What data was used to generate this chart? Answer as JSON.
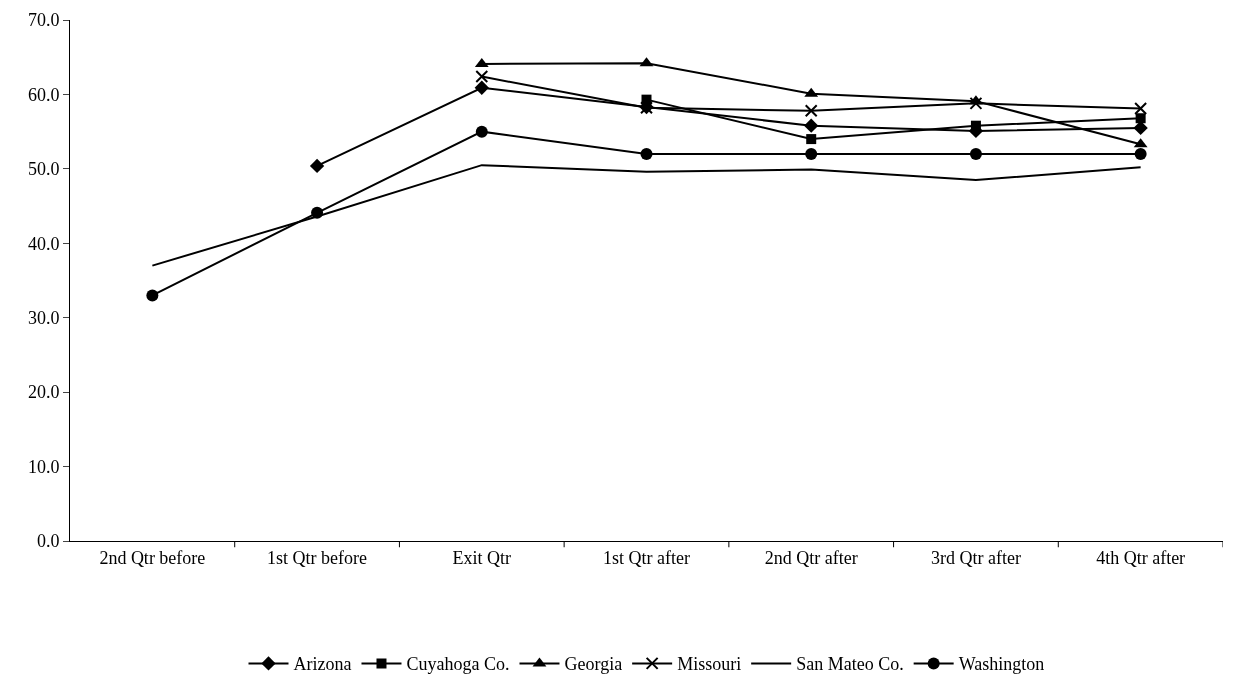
{
  "chart_data": {
    "type": "line",
    "categories": [
      "2nd Qtr before",
      "1st Qtr before",
      "Exit Qtr",
      "1st Qtr after",
      "2nd Qtr after",
      "3rd Qtr after",
      "4th Qtr after"
    ],
    "ylim": [
      0,
      70
    ],
    "yticks": [
      {
        "value": 0,
        "label": "0.0"
      },
      {
        "value": 10,
        "label": "10.0"
      },
      {
        "value": 20,
        "label": "20.0"
      },
      {
        "value": 30,
        "label": "30.0"
      },
      {
        "value": 40,
        "label": "40.0"
      },
      {
        "value": 50,
        "label": "50.0"
      },
      {
        "value": 60,
        "label": "60.0"
      },
      {
        "value": 70,
        "label": "70.0"
      }
    ],
    "grid": false,
    "legend": "bottom",
    "series": [
      {
        "name": "Arizona",
        "color": "#000000",
        "marker": "diamond",
        "values": [
          null,
          50.4,
          60.9,
          58.3,
          55.8,
          55.1,
          55.5
        ]
      },
      {
        "name": "Cuyahoga Co.",
        "color": "#000000",
        "marker": "square",
        "values": [
          null,
          null,
          null,
          59.3,
          54.0,
          55.8,
          56.8
        ]
      },
      {
        "name": "Georgia",
        "color": "#000000",
        "marker": "triangle",
        "values": [
          null,
          null,
          64.1,
          64.2,
          60.1,
          59.1,
          53.3
        ]
      },
      {
        "name": "Missouri",
        "color": "#000000",
        "marker": "cross",
        "values": [
          null,
          null,
          62.4,
          58.2,
          57.8,
          58.8,
          58.1
        ]
      },
      {
        "name": "San Mateo Co.",
        "color": "#000000",
        "marker": "none",
        "values": [
          37.0,
          43.6,
          50.5,
          49.6,
          49.9,
          48.5,
          50.2
        ]
      },
      {
        "name": "Washington",
        "color": "#000000",
        "marker": "circle",
        "values": [
          33.0,
          44.1,
          55.0,
          52.0,
          52.0,
          52.0,
          52.0
        ]
      }
    ]
  }
}
